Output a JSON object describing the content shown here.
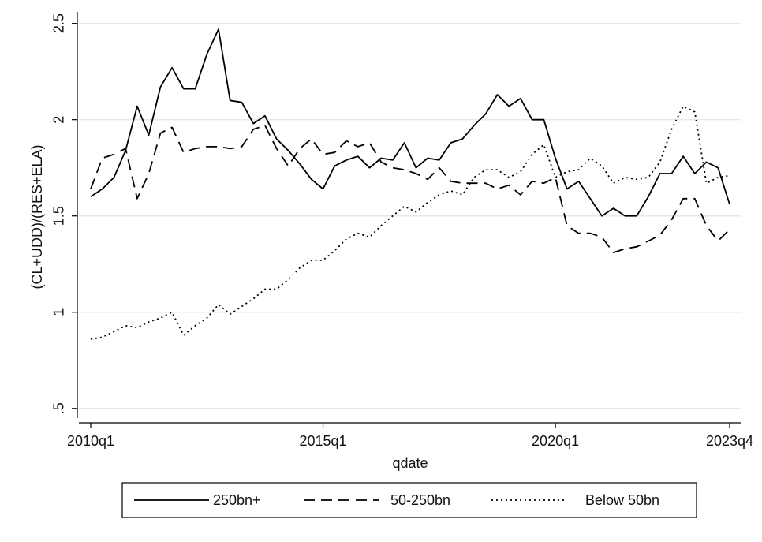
{
  "chart_data": {
    "type": "line",
    "x_label": "qdate",
    "y_label": "(CL+UDD)/(RES+ELA)",
    "categories": [
      "2010q1",
      null,
      null,
      null,
      null,
      null,
      null,
      null,
      null,
      null,
      null,
      null,
      null,
      null,
      null,
      null,
      null,
      null,
      null,
      null,
      "2015q1",
      null,
      null,
      null,
      null,
      null,
      null,
      null,
      null,
      null,
      null,
      null,
      null,
      null,
      null,
      null,
      null,
      null,
      null,
      null,
      "2020q1",
      null,
      null,
      null,
      null,
      null,
      null,
      null,
      null,
      null,
      null,
      null,
      null,
      null,
      null,
      "2023q4"
    ],
    "ylim": [
      0.45,
      2.56
    ],
    "yticks": [
      {
        "value": 0.5,
        "label": ".5"
      },
      1,
      1.5,
      2,
      2.5
    ],
    "grid": true,
    "series": [
      {
        "name": "250bn+",
        "color": "#000000",
        "dash": "solid",
        "values": [
          1.6,
          1.64,
          1.7,
          1.84,
          2.07,
          1.92,
          2.17,
          2.27,
          2.16,
          2.16,
          2.34,
          2.47,
          2.1,
          2.09,
          1.98,
          2.02,
          1.9,
          1.84,
          1.77,
          1.69,
          1.64,
          1.76,
          1.79,
          1.81,
          1.75,
          1.8,
          1.79,
          1.88,
          1.75,
          1.8,
          1.79,
          1.88,
          1.9,
          1.97,
          2.03,
          2.13,
          2.07,
          2.11,
          2.0,
          2.0,
          1.8,
          1.64,
          1.68,
          1.59,
          1.5,
          1.54,
          1.5,
          1.5,
          1.6,
          1.72,
          1.72,
          1.81,
          1.72,
          1.78,
          1.75,
          1.56
        ]
      },
      {
        "name": "50-250bn",
        "color": "#000000",
        "dash": "dashed",
        "values": [
          1.64,
          1.8,
          1.82,
          1.85,
          1.59,
          1.72,
          1.93,
          1.96,
          1.83,
          1.85,
          1.86,
          1.86,
          1.85,
          1.86,
          1.95,
          1.97,
          1.85,
          1.76,
          1.85,
          1.9,
          1.82,
          1.83,
          1.89,
          1.86,
          1.88,
          1.78,
          1.75,
          1.74,
          1.72,
          1.69,
          1.75,
          1.68,
          1.67,
          1.67,
          1.67,
          1.64,
          1.66,
          1.61,
          1.68,
          1.67,
          1.7,
          1.45,
          1.41,
          1.41,
          1.39,
          1.31,
          1.33,
          1.34,
          1.37,
          1.4,
          1.48,
          1.59,
          1.59,
          1.45,
          1.37,
          1.43
        ]
      },
      {
        "name": "Below 50bn",
        "color": "#000000",
        "dash": "dotted",
        "values": [
          0.86,
          0.87,
          0.9,
          0.93,
          0.92,
          0.95,
          0.97,
          1.0,
          0.88,
          0.93,
          0.97,
          1.04,
          0.99,
          1.03,
          1.07,
          1.12,
          1.12,
          1.17,
          1.23,
          1.27,
          1.27,
          1.32,
          1.38,
          1.41,
          1.39,
          1.45,
          1.5,
          1.55,
          1.52,
          1.57,
          1.61,
          1.63,
          1.61,
          1.7,
          1.74,
          1.74,
          1.7,
          1.73,
          1.82,
          1.87,
          1.7,
          1.73,
          1.74,
          1.8,
          1.76,
          1.67,
          1.7,
          1.69,
          1.7,
          1.78,
          1.95,
          2.07,
          2.04,
          1.67,
          1.7,
          1.71
        ]
      }
    ]
  }
}
